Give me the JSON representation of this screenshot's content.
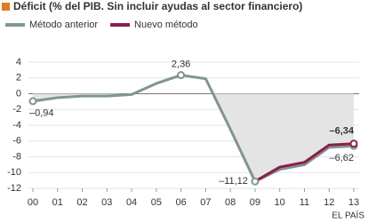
{
  "chart_data": {
    "type": "line",
    "title": "Déficit (% del PIB. Sin incluir ayudas al sector financiero)",
    "source": "EL PAÍS",
    "categories": [
      "00",
      "01",
      "02",
      "03",
      "04",
      "05",
      "06",
      "07",
      "08",
      "09",
      "10",
      "11",
      "12",
      "13"
    ],
    "series": [
      {
        "name": "Método anterior",
        "color": "#7f968e",
        "values": [
          -0.94,
          -0.5,
          -0.3,
          -0.3,
          -0.1,
          1.3,
          2.36,
          1.9,
          -4.5,
          -11.12,
          -9.6,
          -9.0,
          -6.8,
          -6.62
        ],
        "value_labels": [
          "–0,94",
          null,
          null,
          null,
          null,
          null,
          "2,36",
          null,
          null,
          "–11,12",
          null,
          null,
          null,
          "–6,62"
        ]
      },
      {
        "name": "Nuevo método",
        "color": "#8c1d4e",
        "values": [
          null,
          null,
          null,
          null,
          null,
          null,
          null,
          null,
          null,
          -11.12,
          -9.3,
          -8.7,
          -6.5,
          -6.34
        ],
        "value_labels": [
          null,
          null,
          null,
          null,
          null,
          null,
          null,
          null,
          null,
          null,
          null,
          null,
          null,
          "–6,34"
        ]
      }
    ],
    "ylim": [
      -12,
      4
    ],
    "yticks": [
      -12,
      -10,
      -8,
      -6,
      -4,
      -2,
      0,
      2,
      4
    ],
    "grid": true
  }
}
